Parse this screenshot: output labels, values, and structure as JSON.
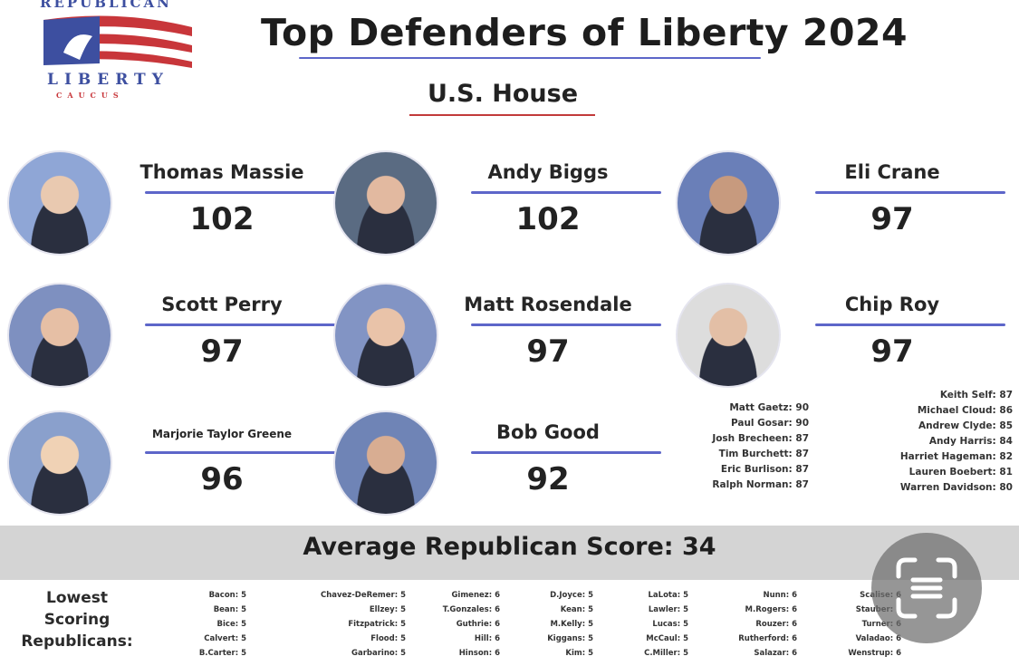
{
  "logo": {
    "top": "REPUBLICAN",
    "middle": "LIBERTY",
    "bottom": "CAUCUS"
  },
  "title": "Top Defenders of Liberty 2024",
  "subtitle": "U.S. House",
  "featured": [
    {
      "name": "Thomas Massie",
      "score": 102
    },
    {
      "name": "Andy Biggs",
      "score": 102
    },
    {
      "name": "Eli Crane",
      "score": 97
    },
    {
      "name": "Scott Perry",
      "score": 97
    },
    {
      "name": "Matt Rosendale",
      "score": 97
    },
    {
      "name": "Chip Roy",
      "score": 97
    },
    {
      "name": "Marjorie Taylor Greene",
      "score": 96
    },
    {
      "name": "Bob Good",
      "score": 92
    }
  ],
  "honorable_mentions": [
    [
      "Matt Gaetz: 90",
      "Paul Gosar: 90",
      "Josh Brecheen: 87",
      "Tim Burchett: 87",
      "Eric Burlison: 87",
      "Ralph Norman: 87"
    ],
    [
      "Keith Self: 87",
      "Michael Cloud: 86",
      "Andrew Clyde: 85",
      "Andy Harris: 84",
      "Harriet Hageman: 82",
      "Lauren Boebert: 81",
      "Warren Davidson: 80"
    ]
  ],
  "average": "Average Republican Score: 34",
  "lowest": {
    "label": [
      "Lowest",
      "Scoring",
      "Republicans:"
    ],
    "columns": [
      [
        "Bacon: 5",
        "Bean: 5",
        "Bice: 5",
        "Calvert: 5",
        "B.Carter: 5"
      ],
      [
        "Chavez-DeRemer: 5",
        "Ellzey: 5",
        "Fitzpatrick: 5",
        "Flood: 5",
        "Garbarino: 5"
      ],
      [
        "Gimenez: 6",
        "T.Gonzales: 6",
        "Guthrie: 6",
        "Hill: 6",
        "Hinson: 6"
      ],
      [
        "D.Joyce: 5",
        "Kean: 5",
        "M.Kelly: 5",
        "Kiggans: 5",
        "Kim: 5"
      ],
      [
        "LaLota: 5",
        "Lawler: 5",
        "Lucas: 5",
        "McCaul: 5",
        "C.Miller: 5"
      ],
      [
        "Nunn: 6",
        "M.Rogers: 6",
        "Rouzer: 6",
        "Rutherford: 6",
        "Salazar: 6"
      ],
      [
        "Scalise: 6",
        "Stauber: 6",
        "Turner: 6",
        "Valadao: 6",
        "Wenstrup: 6"
      ]
    ]
  }
}
